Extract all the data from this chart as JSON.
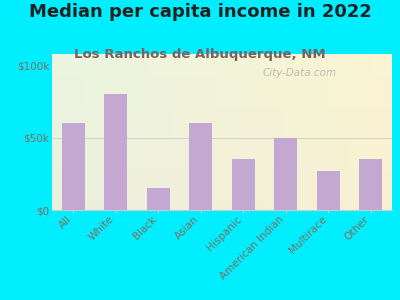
{
  "title": "Median per capita income in 2022",
  "subtitle": "Los Ranchos de Albuquerque, NM",
  "categories": [
    "All",
    "White",
    "Black",
    "Asian",
    "Hispanic",
    "American Indian",
    "Multirace",
    "Other"
  ],
  "values": [
    60000,
    80000,
    15000,
    60000,
    35000,
    50000,
    27000,
    35000
  ],
  "bar_color": "#c3a8d1",
  "background_outer": "#00eeff",
  "title_color": "#222222",
  "subtitle_color": "#7a6060",
  "axis_label_color": "#7a7060",
  "ytick_labels": [
    "$0",
    "$50k",
    "$100k"
  ],
  "ytick_values": [
    0,
    50000,
    100000
  ],
  "ylim": [
    0,
    108000
  ],
  "watermark": "City-Data.com",
  "title_fontsize": 13,
  "subtitle_fontsize": 9.5,
  "tick_fontsize": 7.5,
  "watermark_fontsize": 7.5
}
